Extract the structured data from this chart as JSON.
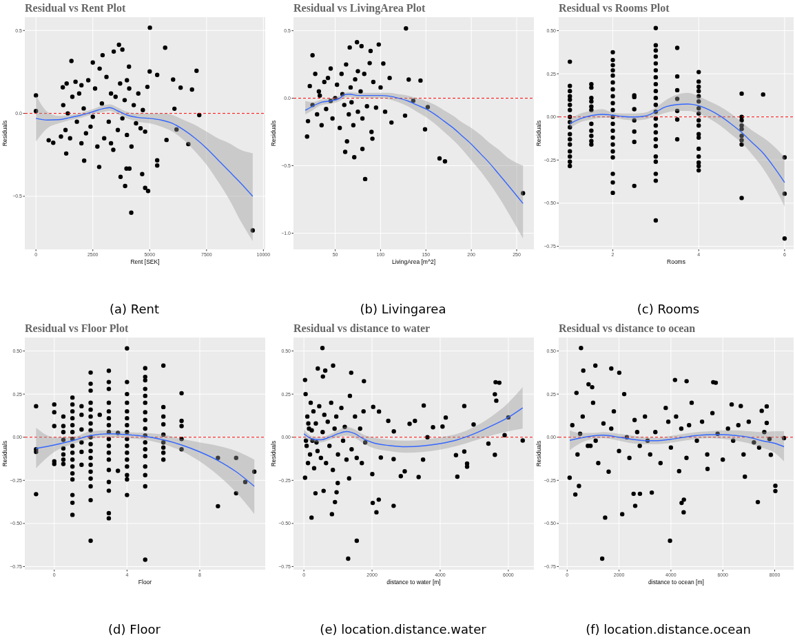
{
  "chart_data": [
    {
      "type": "scatter",
      "title": "Residual vs Rent Plot",
      "xlabel": "Rent [SEK]",
      "ylabel": "Residuals",
      "annotations": [
        "(a) Rent"
      ],
      "xlim": [
        -490,
        10080
      ],
      "ylim": [
        -0.82,
        0.58
      ],
      "xticks": [
        0,
        2500,
        5000,
        7500,
        10000
      ],
      "yticks": [
        {
          "value": -0.5,
          "label": "−0.5"
        },
        {
          "value": 0,
          "label": "0.0"
        },
        0.5
      ],
      "grid": true,
      "marker": "circle",
      "ref_lines": [
        {
          "axis": "y",
          "value": 0,
          "color": "#ff0000",
          "line_style": "dashed"
        }
      ],
      "series": [
        {
          "type": "scatter",
          "color": "#000000",
          "x": [
            5010,
            5680,
            3650,
            3800,
            3420,
            1560,
            2930,
            2500,
            4090,
            7060,
            5000,
            5330,
            6030,
            6360,
            6860,
            0,
            0,
            7180,
            6090,
            6180,
            6700,
            5740,
            5330,
            5330,
            4670,
            4800,
            4930,
            4190,
            9530,
            2780,
            1330,
            2120,
            3720,
            3920,
            3980,
            4110,
            560,
            760,
            1180,
            1350,
            1740,
            1200,
            1300,
            1500,
            1600,
            1800,
            1900,
            2000,
            2100,
            2200,
            2300,
            2400,
            2600,
            2700,
            2800,
            2900,
            3000,
            3100,
            3200,
            3300,
            3400,
            3500,
            3600,
            3700,
            3800,
            3900,
            4000,
            4100,
            4200,
            4300,
            4400,
            4500,
            4600,
            4700,
            4800,
            4900,
            1100,
            1400,
            2500,
            3300,
            2000,
            4000
          ],
          "values": [
            0.517,
            0.396,
            0.414,
            0.385,
            0.373,
            0.316,
            0.351,
            0.307,
            0.282,
            0.257,
            0.253,
            0.232,
            0.204,
            0.155,
            0.144,
            0.109,
            0.014,
            -0.01,
            0.028,
            -0.097,
            -0.185,
            -0.16,
            -0.283,
            -0.314,
            -0.366,
            -0.449,
            -0.468,
            -0.599,
            -0.706,
            -0.323,
            -0.242,
            -0.285,
            -0.383,
            -0.438,
            -0.333,
            -0.333,
            -0.162,
            -0.177,
            0.157,
            0.18,
            0.191,
            0.05,
            -0.1,
            -0.15,
            0.1,
            -0.05,
            0.12,
            -0.18,
            0.03,
            -0.12,
            0.2,
            -0.08,
            0.15,
            -0.2,
            0.27,
            0.06,
            -0.15,
            0.22,
            -0.05,
            0.12,
            -0.22,
            0.1,
            -0.1,
            0.18,
            -0.03,
            0.08,
            -0.13,
            0.15,
            -0.2,
            0.05,
            -0.06,
            0.12,
            -0.09,
            0.02,
            -0.11,
            0.16,
            -0.14,
            0.0,
            -0.02,
            -0.18,
            0.17,
            0.2
          ]
        },
        {
          "type": "line",
          "marker": "none",
          "color": "#3366ff",
          "x": [
            0,
            500,
            1000,
            1500,
            2000,
            2500,
            3000,
            3250,
            3600,
            4000,
            4500,
            5000,
            5500,
            6000,
            6500,
            7000,
            7500,
            8000,
            8500,
            9000,
            9530
          ],
          "values": [
            -0.03,
            -0.04,
            -0.038,
            -0.025,
            -0.01,
            0.01,
            0.03,
            0.035,
            0.015,
            -0.01,
            -0.025,
            -0.03,
            -0.04,
            -0.06,
            -0.1,
            -0.15,
            -0.21,
            -0.28,
            -0.35,
            -0.42,
            -0.5
          ],
          "lower": [
            -0.17,
            -0.09,
            -0.06,
            -0.04,
            -0.025,
            -0.005,
            0.01,
            0.015,
            -0.005,
            -0.03,
            -0.05,
            -0.06,
            -0.08,
            -0.11,
            -0.16,
            -0.23,
            -0.31,
            -0.41,
            -0.52,
            -0.65,
            -0.77
          ],
          "upper": [
            0.11,
            0.01,
            -0.015,
            -0.01,
            0.005,
            0.025,
            0.05,
            0.055,
            0.035,
            0.01,
            0,
            0,
            0,
            -0.01,
            -0.04,
            -0.07,
            -0.11,
            -0.15,
            -0.18,
            -0.22,
            -0.24
          ]
        }
      ]
    },
    {
      "type": "scatter",
      "title": "Residual vs LivingArea Plot",
      "xlabel": "LivingArea [m^2]",
      "ylabel": "Residuals",
      "annotations": [
        "(b) Livingarea"
      ],
      "xlim": [
        4,
        269
      ],
      "ylim": [
        -1.12,
        0.6
      ],
      "xticks": [
        50,
        100,
        150,
        200,
        250
      ],
      "yticks": [
        {
          "value": -1,
          "label": "−1.0"
        },
        {
          "value": -0.5,
          "label": "−0.5"
        },
        {
          "value": 0,
          "label": "0.0"
        },
        0.5
      ],
      "grid": true,
      "marker": "circle",
      "ref_lines": [
        {
          "axis": "y",
          "value": 0,
          "color": "#ff0000",
          "line_style": "dashed"
        }
      ],
      "series": [
        {
          "type": "scatter",
          "color": "#000000",
          "x": [
            128,
            98,
            25,
            131,
            144,
            152,
            136,
            127,
            149,
            165,
            171,
            257,
            83,
            71,
            61,
            80,
            19,
            74,
            79,
            66,
            89,
            103,
            20,
            22,
            25,
            28,
            30,
            32,
            35,
            38,
            40,
            42,
            45,
            47,
            50,
            52,
            55,
            57,
            60,
            62,
            65,
            67,
            70,
            72,
            75,
            78,
            80,
            82,
            85,
            88,
            90,
            92,
            95,
            100,
            105,
            110,
            112,
            45,
            58,
            68,
            33,
            75,
            63,
            91
          ],
          "values": [
            0.517,
            0.398,
            0.318,
            0.138,
            0.131,
            -0.066,
            -0.019,
            -0.129,
            -0.231,
            -0.446,
            -0.468,
            -0.704,
            -0.599,
            -0.437,
            -0.398,
            -0.376,
            -0.284,
            0.415,
            0.386,
            0.376,
            0.35,
            0.257,
            -0.17,
            0.09,
            -0.05,
            0.18,
            -0.12,
            0.05,
            -0.2,
            0.12,
            -0.08,
            0.15,
            0.22,
            -0.15,
            0.0,
            0.1,
            -0.22,
            0.18,
            -0.05,
            0.25,
            -0.12,
            0.08,
            -0.2,
            0.14,
            -0.1,
            0.05,
            -0.15,
            0.18,
            -0.06,
            0.26,
            -0.25,
            0.12,
            -0.07,
            0.08,
            -0.1,
            0.15,
            -0.18,
            -0.02,
            0.03,
            -0.03,
            0.02,
            0.2,
            -0.32,
            -0.3
          ]
        },
        {
          "type": "line",
          "marker": "none",
          "color": "#3366ff",
          "x": [
            17,
            25,
            35,
            45,
            55,
            60,
            65,
            75,
            90,
            100,
            110,
            120,
            130,
            140,
            150,
            160,
            170,
            180,
            190,
            200,
            210,
            220,
            230,
            240,
            257
          ],
          "values": [
            -0.09,
            -0.06,
            -0.03,
            -0.02,
            0.0,
            0.025,
            0.03,
            0.02,
            0.02,
            0.02,
            0.015,
            0.0,
            -0.02,
            -0.05,
            -0.08,
            -0.12,
            -0.17,
            -0.22,
            -0.28,
            -0.34,
            -0.41,
            -0.48,
            -0.56,
            -0.64,
            -0.78
          ],
          "lower": [
            -0.12,
            -0.09,
            -0.05,
            -0.04,
            -0.02,
            0.0,
            0.01,
            0.0,
            0.0,
            0.0,
            -0.01,
            -0.03,
            -0.06,
            -0.1,
            -0.14,
            -0.19,
            -0.25,
            -0.31,
            -0.38,
            -0.46,
            -0.54,
            -0.63,
            -0.73,
            -0.84,
            -1.04
          ],
          "upper": [
            -0.02,
            -0.03,
            -0.01,
            0.0,
            0.02,
            0.04,
            0.045,
            0.04,
            0.04,
            0.04,
            0.04,
            0.03,
            0.02,
            0.0,
            -0.02,
            -0.05,
            -0.09,
            -0.13,
            -0.18,
            -0.22,
            -0.27,
            -0.33,
            -0.38,
            -0.44,
            -0.5
          ]
        }
      ]
    },
    {
      "type": "scatter",
      "title": "Residual vs Rooms Plot",
      "xlabel": "Rooms",
      "ylabel": "Residuals",
      "annotations": [
        "(c) Rooms"
      ],
      "xlim": [
        0.74,
        6.21
      ],
      "ylim": [
        -0.768,
        0.578
      ],
      "xticks": [
        2,
        4,
        6
      ],
      "yticks": [
        {
          "value": -0.75,
          "label": "−0.75"
        },
        {
          "value": -0.5,
          "label": "−0.50"
        },
        {
          "value": -0.25,
          "label": "−0.25"
        },
        {
          "value": 0,
          "label": "0.00"
        },
        {
          "value": 0.25,
          "label": "0.25"
        },
        {
          "value": 0.5,
          "label": "0.50"
        }
      ],
      "grid": true,
      "marker": "circle",
      "ref_lines": [
        {
          "axis": "y",
          "value": 0,
          "color": "#ff0000",
          "line_style": "dashed"
        }
      ],
      "series": [
        {
          "type": "scatter",
          "color": "#000000",
          "x": [
            1,
            1,
            1,
            1,
            1,
            1,
            1,
            1,
            1,
            1,
            1,
            1,
            1,
            1,
            1,
            1,
            1,
            1.5,
            1.5,
            1.5,
            1.5,
            1.5,
            1.5,
            1.5,
            1.5,
            1.5,
            1.5,
            1.5,
            2,
            2,
            2,
            2,
            2,
            2,
            2,
            2,
            2,
            2,
            2,
            2,
            2,
            2,
            2,
            2,
            2,
            2,
            2,
            2,
            2.5,
            2.5,
            2.5,
            2.5,
            2.5,
            2.5,
            2.5,
            3,
            3,
            3,
            3,
            3,
            3,
            3,
            3,
            3,
            3,
            3,
            3,
            3,
            3,
            3,
            3,
            3,
            3,
            3,
            3,
            3,
            3,
            3.5,
            3.5,
            3.5,
            3.5,
            3.5,
            3.5,
            3.5,
            4,
            4,
            4,
            4,
            4,
            4,
            4,
            4,
            4,
            4,
            4,
            4,
            4,
            4,
            4,
            4,
            4,
            5,
            5,
            5,
            5,
            5,
            5,
            5,
            5,
            5,
            5.5,
            6,
            6,
            6
          ],
          "values": [
            0.32,
            0.18,
            0.15,
            0.12,
            0.1,
            0.07,
            0.04,
            0.0,
            -0.03,
            -0.06,
            -0.1,
            -0.13,
            -0.16,
            -0.2,
            -0.23,
            -0.26,
            -0.285,
            0.19,
            0.17,
            0.11,
            0.09,
            0.06,
            0.04,
            -0.04,
            -0.08,
            -0.11,
            -0.14,
            -0.16,
            0.375,
            0.33,
            0.3,
            0.27,
            0.24,
            0.2,
            0.16,
            0.12,
            0.08,
            0.04,
            0.0,
            -0.04,
            -0.08,
            -0.12,
            -0.16,
            -0.2,
            -0.235,
            -0.33,
            -0.38,
            -0.44,
            0.125,
            0.115,
            0.045,
            -0.02,
            -0.085,
            -0.145,
            -0.4,
            0.515,
            0.415,
            0.385,
            0.35,
            0.31,
            0.27,
            0.23,
            0.19,
            0.15,
            0.11,
            0.07,
            0.03,
            -0.01,
            -0.05,
            -0.09,
            -0.13,
            -0.17,
            -0.23,
            -0.26,
            -0.33,
            -0.37,
            -0.6,
            0.4,
            0.235,
            0.155,
            0.105,
            0.035,
            -0.015,
            -0.13,
            0.26,
            0.205,
            0.175,
            0.15,
            0.12,
            0.09,
            0.05,
            0.02,
            -0.02,
            -0.05,
            -0.1,
            -0.12,
            -0.185,
            -0.23,
            -0.265,
            -0.285,
            -0.31,
            0.135,
            0.0,
            -0.02,
            -0.05,
            -0.07,
            -0.11,
            -0.135,
            -0.16,
            -0.47,
            0.13,
            -0.235,
            -0.445,
            -0.705
          ]
        },
        {
          "type": "line",
          "marker": "none",
          "color": "#3366ff",
          "x": [
            1,
            1.25,
            1.5,
            1.75,
            2,
            2.25,
            2.5,
            2.75,
            3,
            3.25,
            3.5,
            3.75,
            4,
            4.25,
            4.5,
            4.75,
            5,
            5.25,
            5.5,
            5.75,
            6
          ],
          "values": [
            -0.04,
            -0.01,
            0.008,
            0.015,
            0.01,
            0.002,
            0.0,
            0.005,
            0.03,
            0.06,
            0.072,
            0.075,
            0.065,
            0.04,
            0.005,
            -0.04,
            -0.09,
            -0.15,
            -0.21,
            -0.29,
            -0.38
          ],
          "lower": [
            -0.065,
            -0.03,
            -0.015,
            -0.005,
            -0.005,
            -0.015,
            -0.02,
            -0.015,
            0.005,
            0.025,
            0.035,
            0.035,
            0.02,
            -0.01,
            -0.05,
            -0.1,
            -0.15,
            -0.22,
            -0.3,
            -0.4,
            -0.52
          ],
          "upper": [
            -0.015,
            0.02,
            0.035,
            0.045,
            0.025,
            0.02,
            0.02,
            0.025,
            0.055,
            0.1,
            0.13,
            0.14,
            0.12,
            0.09,
            0.06,
            0.02,
            -0.03,
            -0.08,
            -0.12,
            -0.17,
            -0.235
          ]
        }
      ]
    },
    {
      "type": "scatter",
      "title": "Residual vs Floor Plot",
      "xlabel": "Floor",
      "ylabel": "Residuals",
      "annotations": [
        "(d) Floor"
      ],
      "xlim": [
        -1.62,
        11.6
      ],
      "ylim": [
        -0.768,
        0.578
      ],
      "xticks": [
        0,
        4,
        8
      ],
      "yticks": [
        {
          "value": -0.75,
          "label": "−0.75"
        },
        {
          "value": -0.5,
          "label": "−0.50"
        },
        {
          "value": -0.25,
          "label": "−0.25"
        },
        {
          "value": 0,
          "label": "0.00"
        },
        {
          "value": 0.25,
          "label": "0.25"
        },
        {
          "value": 0.5,
          "label": "0.50"
        }
      ],
      "grid": true,
      "marker": "circle",
      "ref_lines": [
        {
          "axis": "y",
          "value": 0,
          "color": "#ff0000",
          "line_style": "dashed"
        }
      ],
      "series": [
        {
          "type": "scatter",
          "color": "#000000",
          "x": [
            -1,
            -1,
            -1,
            -1,
            0,
            0,
            0,
            0,
            0,
            0.5,
            0.5,
            0.5,
            0.5,
            0.5,
            0.5,
            0.5,
            0.5,
            1,
            1,
            1,
            1,
            1,
            1,
            1,
            1,
            1,
            1,
            1,
            1,
            1,
            1,
            1,
            1,
            1.5,
            1.5,
            1.5,
            1.5,
            1.5,
            1.5,
            2,
            2,
            2,
            2,
            2,
            2,
            2,
            2,
            2,
            2,
            2,
            2,
            2,
            2,
            2,
            2,
            2,
            2,
            2.5,
            3,
            3,
            3,
            3,
            3,
            3,
            3,
            3,
            3,
            3,
            3,
            3,
            3,
            3,
            3,
            3,
            3,
            3.5,
            3.5,
            4,
            4,
            4,
            4,
            4,
            4,
            4,
            4,
            4,
            4,
            4,
            4,
            4,
            4,
            4,
            4,
            5,
            5,
            5,
            5,
            5,
            5,
            5,
            5,
            5,
            5,
            5,
            5,
            5,
            5,
            5,
            5,
            5,
            6,
            6,
            6,
            6,
            6,
            6,
            6,
            6,
            6,
            7,
            7,
            7,
            7,
            7,
            9,
            9,
            10,
            10,
            10.5,
            11
          ],
          "values": [
            0.18,
            -0.07,
            -0.085,
            -0.33,
            0.19,
            0.145,
            0.065,
            -0.14,
            -0.155,
            0.12,
            0.065,
            0.03,
            -0.015,
            -0.065,
            -0.1,
            -0.13,
            -0.155,
            0.23,
            0.19,
            0.15,
            0.11,
            0.07,
            0.03,
            -0.01,
            -0.05,
            -0.09,
            -0.13,
            -0.17,
            -0.21,
            -0.245,
            -0.335,
            -0.38,
            -0.45,
            0.18,
            0.13,
            0.045,
            -0.03,
            -0.085,
            -0.16,
            0.375,
            0.31,
            0.27,
            0.2,
            0.16,
            0.12,
            0.08,
            0.04,
            0.0,
            -0.04,
            -0.08,
            -0.12,
            -0.16,
            -0.2,
            -0.24,
            -0.285,
            -0.365,
            -0.6,
            0.13,
            0.385,
            0.32,
            0.28,
            0.2,
            0.15,
            0.11,
            0.07,
            0.03,
            -0.01,
            -0.05,
            -0.09,
            -0.13,
            -0.19,
            -0.26,
            -0.31,
            -0.44,
            -0.47,
            0.025,
            -0.195,
            0.515,
            0.32,
            0.25,
            0.2,
            0.15,
            0.11,
            0.07,
            0.03,
            -0.01,
            -0.05,
            -0.09,
            -0.13,
            -0.17,
            -0.22,
            -0.245,
            -0.335,
            0.4,
            0.35,
            0.33,
            0.28,
            0.24,
            0.2,
            0.145,
            0.1,
            0.05,
            0.01,
            -0.03,
            -0.07,
            -0.11,
            -0.17,
            -0.22,
            -0.285,
            -0.71,
            0.415,
            0.175,
            0.12,
            0.075,
            0.015,
            -0.03,
            -0.06,
            -0.09,
            -0.13,
            0.255,
            0.095,
            0.065,
            -0.01,
            -0.07,
            -0.12,
            -0.4,
            -0.12,
            -0.325,
            -0.26,
            -0.2
          ]
        },
        {
          "type": "line",
          "marker": "none",
          "color": "#3366ff",
          "x": [
            -1,
            0,
            1,
            2,
            3,
            4,
            5,
            6,
            7,
            8,
            9,
            10,
            11
          ],
          "values": [
            -0.065,
            -0.045,
            -0.02,
            0.01,
            0.02,
            0.015,
            0.005,
            -0.015,
            -0.045,
            -0.085,
            -0.135,
            -0.2,
            -0.285
          ],
          "lower": [
            -0.18,
            -0.085,
            -0.04,
            -0.01,
            0.0,
            -0.005,
            -0.015,
            -0.04,
            -0.08,
            -0.14,
            -0.22,
            -0.32,
            -0.445
          ],
          "upper": [
            0.055,
            0.0,
            0.0,
            0.035,
            0.04,
            0.03,
            0.025,
            0.015,
            -0.01,
            -0.03,
            -0.05,
            -0.08,
            -0.13
          ]
        }
      ]
    },
    {
      "type": "scatter",
      "title": "Residual vs distance to water",
      "xlabel": "distance to water [m]",
      "ylabel": "Residuals",
      "annotations": [
        "(e) location.distance.water"
      ],
      "xlim": [
        -306,
        6750
      ],
      "ylim": [
        -0.768,
        0.578
      ],
      "xticks": [
        0,
        2000,
        4000,
        6000
      ],
      "yticks": [
        {
          "value": -0.75,
          "label": "−0.75"
        },
        {
          "value": -0.5,
          "label": "−0.50"
        },
        {
          "value": -0.25,
          "label": "−0.25"
        },
        {
          "value": 0,
          "label": "0.00"
        },
        {
          "value": 0.25,
          "label": "0.25"
        },
        {
          "value": 0.5,
          "label": "0.50"
        }
      ],
      "grid": true,
      "marker": "circle",
      "ref_lines": [
        {
          "axis": "y",
          "value": 0,
          "color": "#ff0000",
          "line_style": "dashed"
        }
      ],
      "series": [
        {
          "type": "scatter",
          "color": "#000000",
          "x": [
            544,
            857,
            408,
            626,
            558,
            1388,
            1762,
            34,
            224,
            823,
            912,
            1299,
            1551,
            2020,
            2129,
            2197,
            2633,
            3517,
            4163,
            4707,
            5626,
            5735,
            5605,
            5646,
            6000,
            6422,
            5891,
            5605,
            5415,
            4980,
            4789,
            4789,
            4503,
            4463,
            4707,
            4068,
            3789,
            3367,
            3497,
            3626,
            3259,
            3102,
            2959,
            2844,
            2633,
            2476,
            2034,
            2204,
            2258,
            2007,
            2639,
            1327,
            993,
            959,
            340,
            34,
            578,
            50,
            80,
            100,
            120,
            150,
            180,
            200,
            250,
            280,
            300,
            350,
            400,
            450,
            500,
            550,
            600,
            650,
            700,
            750,
            800,
            850,
            900,
            950,
            1000,
            1100,
            1150,
            1200,
            1250,
            1350,
            1400,
            1500,
            1550,
            1650,
            1700,
            1750,
            1800,
            60,
            230,
            370,
            130
          ],
          "values": [
            0.517,
            0.415,
            0.398,
            0.386,
            0.352,
            0.374,
            0.325,
            0.332,
            -0.466,
            -0.446,
            -0.376,
            -0.704,
            -0.6,
            -0.381,
            -0.435,
            -0.362,
            -0.398,
            0.184,
            0.114,
            0.181,
            0.319,
            0.316,
            0.249,
            0.212,
            0.115,
            -0.019,
            0.012,
            -0.102,
            -0.037,
            0.074,
            -0.153,
            -0.171,
            -0.229,
            -0.104,
            -0.083,
            0.062,
            0.058,
            -0.231,
            -0.13,
            0.0,
            0.095,
            0.078,
            -0.198,
            -0.226,
            -0.127,
            0.095,
            0.176,
            0.149,
            -0.118,
            -0.214,
            0.034,
            -0.239,
            -0.266,
            -0.319,
            -0.325,
            -0.235,
            -0.311,
            0.25,
            -0.05,
            0.12,
            -0.15,
            0.05,
            -0.1,
            0.2,
            -0.02,
            0.15,
            -0.18,
            0.08,
            -0.08,
            0.18,
            -0.12,
            0.03,
            0.13,
            -0.15,
            0.09,
            -0.05,
            0.2,
            -0.19,
            0.05,
            0.12,
            -0.1,
            0.17,
            -0.02,
            0.06,
            -0.13,
            0.24,
            -0.07,
            0.12,
            -0.12,
            0.05,
            -0.15,
            0.15,
            -0.03,
            -0.02,
            0.04,
            -0.03,
            0.08
          ]
        },
        {
          "type": "line",
          "marker": "none",
          "color": "#3366ff",
          "x": [
            0,
            250,
            500,
            750,
            1000,
            1250,
            1500,
            1750,
            2000,
            2500,
            3000,
            3500,
            4000,
            4500,
            5000,
            5500,
            6000,
            6420
          ],
          "values": [
            0.02,
            -0.01,
            -0.015,
            0.0,
            0.02,
            0.033,
            0.02,
            -0.01,
            -0.03,
            -0.048,
            -0.055,
            -0.05,
            -0.037,
            -0.015,
            0.02,
            0.065,
            0.115,
            0.17
          ],
          "lower": [
            -0.005,
            -0.025,
            -0.03,
            -0.015,
            0.0,
            0.01,
            -0.005,
            -0.035,
            -0.06,
            -0.08,
            -0.09,
            -0.085,
            -0.072,
            -0.05,
            -0.02,
            0.01,
            0.035,
            0.05
          ],
          "upper": [
            0.045,
            0.005,
            0.0,
            0.015,
            0.04,
            0.06,
            0.045,
            0.015,
            0.0,
            -0.015,
            -0.02,
            -0.015,
            0.0,
            0.02,
            0.06,
            0.12,
            0.2,
            0.29
          ]
        }
      ]
    },
    {
      "type": "scatter",
      "title": "Residual vs distance to ocean",
      "xlabel": "distance to ocean [m]",
      "ylabel": "Residuals",
      "annotations": [
        "(f) location.distance.ocean"
      ],
      "xlim": [
        -325,
        8730
      ],
      "ylim": [
        -0.768,
        0.578
      ],
      "xticks": [
        0,
        2000,
        4000,
        6000,
        8000
      ],
      "yticks": [
        {
          "value": -0.75,
          "label": "−0.75"
        },
        {
          "value": -0.5,
          "label": "−0.50"
        },
        {
          "value": -0.25,
          "label": "−0.25"
        },
        {
          "value": 0,
          "label": "0.00"
        },
        {
          "value": 0.25,
          "label": "0.25"
        },
        {
          "value": 0.5,
          "label": "0.50"
        }
      ],
      "grid": true,
      "marker": "circle",
      "ref_lines": [
        {
          "axis": "y",
          "value": 0,
          "color": "#ff0000",
          "line_style": "dashed"
        }
      ],
      "series": [
        {
          "type": "scatter",
          "color": "#000000",
          "x": [
            535,
            1088,
            623,
            1702,
            2009,
            4158,
            4605,
            5632,
            5728,
            1351,
            3965,
            1465,
            2123,
            2623,
            4491,
            4412,
            4500,
            316,
            456,
            96,
            8026,
            8026,
            7351,
            6851,
            8360,
            7851,
            7693,
            7693,
            7500,
            6342,
            6693,
            4316,
            3263,
            2561,
            2807,
            5412,
            360,
            965,
            825,
            200,
            400,
            600,
            800,
            1000,
            1200,
            1400,
            1600,
            1800,
            2000,
            2200,
            2400,
            2600,
            2800,
            3000,
            3200,
            3400,
            3600,
            3800,
            4000,
            4200,
            4400,
            4600,
            4800,
            5000,
            5200,
            5400,
            5600,
            5800,
            6000,
            6200,
            6400,
            6600,
            6800,
            7000,
            7200,
            7400,
            7600,
            7800,
            1100,
            1700,
            2300,
            2700,
            3100,
            500,
            3900,
            4700,
            900
          ],
          "values": [
            0.517,
            0.415,
            0.386,
            0.398,
            0.374,
            0.332,
            0.325,
            0.319,
            0.316,
            -0.704,
            -0.6,
            -0.466,
            -0.446,
            -0.398,
            -0.435,
            -0.381,
            -0.362,
            -0.332,
            -0.283,
            -0.235,
            -0.282,
            -0.312,
            -0.376,
            -0.229,
            -0.005,
            -0.102,
            0.083,
            0.179,
            0.153,
            0.19,
            0.181,
            -0.197,
            -0.321,
            -0.328,
            -0.328,
            -0.184,
            0.257,
            0.29,
            0.307,
            0.07,
            -0.1,
            0.12,
            -0.05,
            0.2,
            -0.15,
            0.08,
            -0.2,
            0.15,
            -0.08,
            0.25,
            -0.12,
            0.1,
            -0.05,
            0.12,
            -0.1,
            0.03,
            -0.15,
            0.17,
            -0.06,
            0.12,
            0.05,
            -0.12,
            0.2,
            -0.02,
            0.09,
            -0.1,
            0.14,
            0.02,
            -0.13,
            0.05,
            -0.02,
            0.07,
            -0.1,
            0.09,
            -0.03,
            -0.06,
            0.03,
            -0.01,
            -0.02,
            0.05,
            0.0,
            0.03,
            -0.02,
            0.02,
            0.09,
            0.07,
            -0.05
          ]
        },
        {
          "type": "line",
          "marker": "none",
          "color": "#3366ff",
          "x": [
            100,
            500,
            1000,
            1400,
            2000,
            2500,
            3000,
            3500,
            4000,
            4500,
            5000,
            5500,
            6000,
            6500,
            7000,
            7500,
            8000,
            8360
          ],
          "values": [
            -0.018,
            -0.005,
            0.008,
            0.012,
            0.0,
            -0.012,
            -0.02,
            -0.02,
            -0.012,
            0.0,
            0.01,
            0.015,
            0.015,
            0.01,
            0.0,
            -0.02,
            -0.035,
            -0.055
          ],
          "lower": [
            -0.075,
            -0.035,
            -0.01,
            -0.005,
            -0.02,
            -0.035,
            -0.04,
            -0.04,
            -0.032,
            -0.02,
            -0.01,
            -0.005,
            -0.01,
            -0.02,
            -0.035,
            -0.06,
            -0.09,
            -0.14
          ],
          "upper": [
            0.04,
            0.025,
            0.025,
            0.03,
            0.02,
            0.01,
            0.0,
            -0.003,
            0.008,
            0.02,
            0.03,
            0.035,
            0.04,
            0.04,
            0.035,
            0.03,
            0.035,
            0.035
          ]
        }
      ]
    }
  ]
}
